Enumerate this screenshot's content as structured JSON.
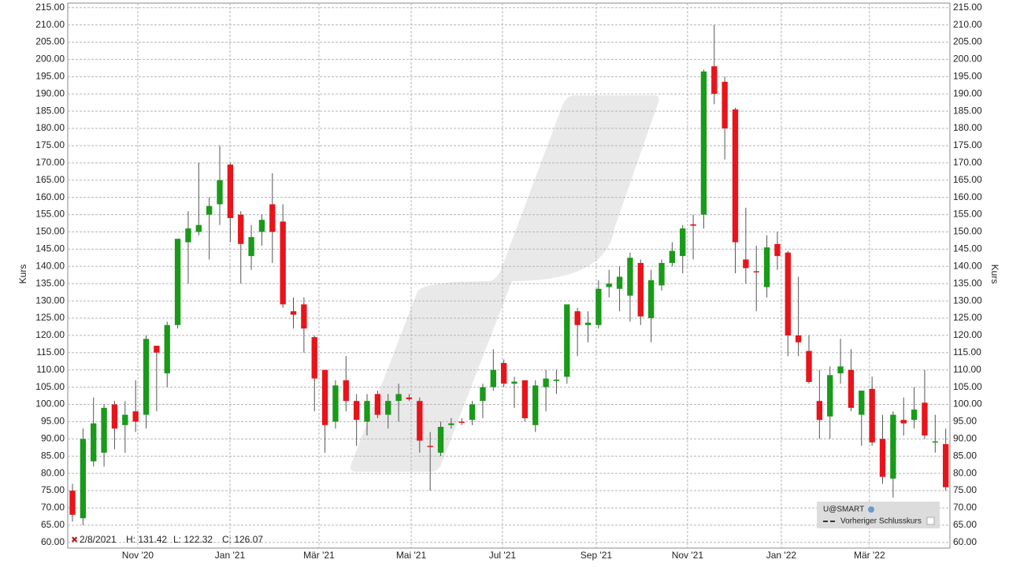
{
  "chart_data": {
    "type": "candlestick",
    "y_label": "Kurs",
    "y2_label": "Kurs",
    "up_color": "#1a9a1a",
    "down_color": "#e8141b",
    "grid": true,
    "x": [
      0,
      1,
      2,
      3,
      4,
      5,
      6,
      7,
      8,
      9,
      10,
      11,
      12,
      13,
      14,
      15,
      16,
      17,
      18,
      19,
      20,
      21,
      22,
      23,
      24,
      25,
      26,
      27,
      28,
      29,
      30,
      31,
      32,
      33,
      34,
      35,
      36,
      37,
      38,
      39,
      40,
      41,
      42,
      43,
      44,
      45,
      46,
      47,
      48,
      49,
      50,
      51,
      52,
      53,
      54,
      55,
      56,
      57,
      58,
      59,
      60,
      61,
      62,
      63,
      64,
      65,
      66,
      67,
      68,
      69,
      70,
      71,
      72,
      73,
      74,
      75,
      76,
      77,
      78,
      79,
      80,
      81,
      82,
      83
    ],
    "open": [
      75,
      67,
      83.5,
      86,
      100,
      94,
      98,
      97,
      117,
      109,
      123,
      147,
      150,
      155,
      158,
      169.5,
      155,
      143,
      150,
      158,
      153,
      127,
      129,
      119.5,
      110,
      95,
      107,
      101,
      95,
      103,
      97,
      101,
      102,
      101,
      88,
      86,
      94,
      95,
      95.5,
      101,
      105,
      112,
      106,
      107,
      94,
      105,
      106.8,
      108,
      127,
      123,
      123,
      134,
      133.5,
      131.5,
      141,
      125,
      134.5,
      141,
      143,
      152.2,
      155,
      198,
      193.5,
      185.5,
      142,
      138.6,
      134,
      146.5,
      144,
      120,
      115.5,
      101,
      96.5,
      109,
      110,
      97,
      104.5,
      90,
      78.5,
      95.5,
      95.5,
      100.5,
      89,
      88.5
    ],
    "high": [
      77,
      93,
      102,
      100,
      101,
      101,
      107,
      120,
      117,
      124,
      148,
      156,
      170,
      160,
      175,
      170,
      156,
      152,
      155,
      167,
      158,
      131,
      131,
      120,
      110,
      107,
      114,
      103,
      103,
      104,
      103,
      106,
      103,
      102,
      92,
      95,
      96,
      96,
      101,
      106,
      116,
      113,
      108,
      107,
      107,
      110,
      110,
      129,
      128,
      127,
      136,
      139,
      140,
      144,
      142,
      139,
      142,
      147,
      152,
      155,
      197,
      210,
      195,
      186,
      157,
      146,
      149,
      150,
      144.5,
      137,
      120,
      110,
      111,
      119,
      116,
      104,
      108,
      97,
      98,
      102,
      105,
      110,
      97,
      93
    ],
    "low": [
      66,
      65,
      82,
      82,
      87,
      86,
      92,
      93,
      98,
      105,
      122,
      135,
      149,
      142,
      152,
      147,
      135,
      139,
      146,
      141,
      128,
      122,
      115,
      98,
      86,
      93,
      98,
      88,
      91,
      96,
      93,
      95,
      101,
      86,
      75,
      85,
      93,
      94,
      94,
      96,
      104,
      105,
      99,
      95,
      92,
      98,
      103,
      106,
      114,
      118,
      122,
      131,
      127,
      124,
      123,
      118,
      133,
      140,
      138,
      142,
      151,
      187,
      171,
      138,
      135,
      127,
      131,
      139,
      114,
      114,
      106,
      90,
      90,
      106,
      98,
      88,
      88,
      77,
      73,
      91,
      93,
      90,
      86,
      75
    ],
    "close": [
      68,
      90,
      94.5,
      99,
      93,
      97,
      95,
      119,
      115,
      123,
      148,
      151,
      152,
      157.5,
      165,
      154,
      146.5,
      148.5,
      153.5,
      150,
      129,
      126,
      122,
      107.5,
      94,
      105.5,
      101,
      95.5,
      101,
      97,
      101,
      103,
      101.5,
      89.5,
      87.7,
      93.5,
      94.5,
      94.8,
      100,
      105,
      110,
      106,
      106.6,
      96,
      105.5,
      107.5,
      107.2,
      129,
      123,
      123.7,
      133.5,
      135,
      137,
      142.5,
      125.5,
      136,
      141,
      144.5,
      151,
      151.8,
      196.5,
      190,
      180,
      147,
      139.5,
      138.4,
      145.5,
      143,
      120,
      118,
      106.5,
      95.5,
      108.5,
      111,
      99,
      104,
      89,
      79,
      97,
      94.5,
      98.5,
      91,
      89.3,
      76
    ],
    "xlim": [
      -0.45,
      83.4
    ],
    "xticks": [
      {
        "value": 6.21,
        "label": "Nov '20"
      },
      {
        "value": 14.97,
        "label": "Jan '21"
      },
      {
        "value": 23.43,
        "label": "Mär '21"
      },
      {
        "value": 32.19,
        "label": "Mai '21"
      },
      {
        "value": 40.87,
        "label": "Jul '21"
      },
      {
        "value": 49.78,
        "label": "Sep '21"
      },
      {
        "value": 58.46,
        "label": "Nov '21"
      },
      {
        "value": 67.37,
        "label": "Jan '22"
      },
      {
        "value": 75.75,
        "label": "Mär '22"
      }
    ],
    "ylim": [
      58.35,
      216.3
    ],
    "yticks": [
      {
        "value": 60,
        "label": "60.00"
      },
      {
        "value": 65,
        "label": "65.00"
      },
      {
        "value": 70,
        "label": "70.00"
      },
      {
        "value": 75,
        "label": "75.00"
      },
      {
        "value": 80,
        "label": "80.00"
      },
      {
        "value": 85,
        "label": "85.00"
      },
      {
        "value": 90,
        "label": "90.00"
      },
      {
        "value": 95,
        "label": "95.00"
      },
      {
        "value": 100,
        "label": "100.00"
      },
      {
        "value": 105,
        "label": "105.00"
      },
      {
        "value": 110,
        "label": "110.00"
      },
      {
        "value": 115,
        "label": "115.00"
      },
      {
        "value": 120,
        "label": "120.00"
      },
      {
        "value": 125,
        "label": "125.00"
      },
      {
        "value": 130,
        "label": "130.00"
      },
      {
        "value": 135,
        "label": "135.00"
      },
      {
        "value": 140,
        "label": "140.00"
      },
      {
        "value": 145,
        "label": "145.00"
      },
      {
        "value": 150,
        "label": "150.00"
      },
      {
        "value": 155,
        "label": "155.00"
      },
      {
        "value": 160,
        "label": "160.00"
      },
      {
        "value": 165,
        "label": "165.00"
      },
      {
        "value": 170,
        "label": "170.00"
      },
      {
        "value": 175,
        "label": "175.00"
      },
      {
        "value": 180,
        "label": "180.00"
      },
      {
        "value": 185,
        "label": "185.00"
      },
      {
        "value": 190,
        "label": "190.00"
      },
      {
        "value": 195,
        "label": "195.00"
      },
      {
        "value": 200,
        "label": "200.00"
      },
      {
        "value": 205,
        "label": "205.00"
      },
      {
        "value": 210,
        "label": "210.00"
      },
      {
        "value": 215,
        "label": "215.00"
      }
    ],
    "info": {
      "date": "2/8/2021",
      "high": "H: 131.42",
      "low": "L: 122.32",
      "close": "C: 126.07"
    },
    "legend": {
      "symbol": "U@SMART",
      "previous_close": "Vorheriger Schlusskurs"
    }
  }
}
